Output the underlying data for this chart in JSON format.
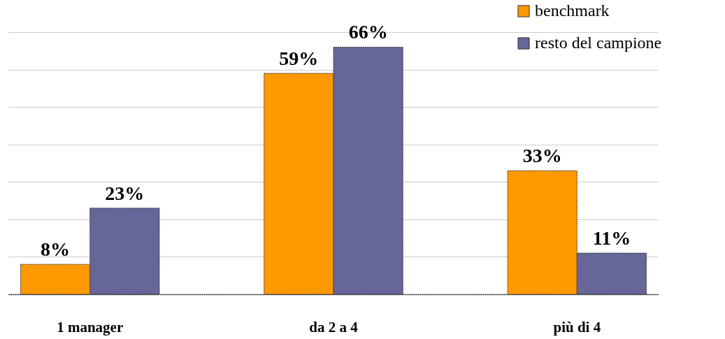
{
  "chart_data": {
    "type": "bar",
    "categories": [
      "1 manager",
      "da 2 a 4",
      "più di 4"
    ],
    "series": [
      {
        "name": "benchmark",
        "color": "#ff9900",
        "values": [
          8,
          59,
          33
        ],
        "value_labels": [
          "8%",
          "59%",
          "33%"
        ]
      },
      {
        "name": "resto del campione",
        "color": "#666699",
        "values": [
          23,
          66,
          11
        ],
        "value_labels": [
          "23%",
          "66%",
          "11%"
        ]
      }
    ],
    "ylim": [
      0,
      70
    ],
    "yticks": [
      {
        "value": 0,
        "label": null
      },
      {
        "value": 10,
        "label": null
      },
      {
        "value": 20,
        "label": null
      },
      {
        "value": 30,
        "label": null
      },
      {
        "value": 40,
        "label": null
      },
      {
        "value": 50,
        "label": null
      },
      {
        "value": 60,
        "label": null
      },
      {
        "value": 70,
        "label": null
      }
    ],
    "grid": "y",
    "legend": "top right",
    "tick_labels": "x"
  }
}
